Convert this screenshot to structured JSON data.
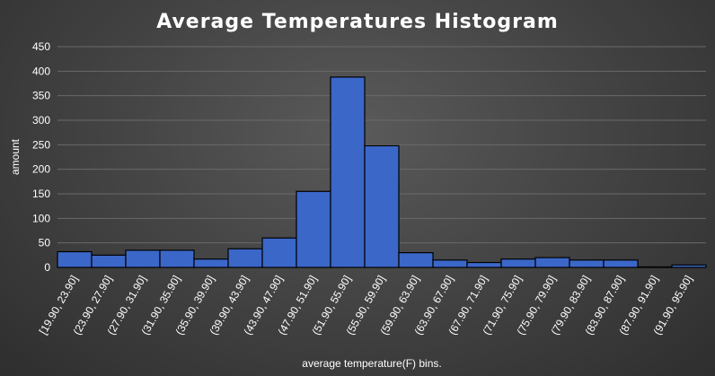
{
  "chart_data": {
    "type": "bar",
    "title": "Average Temperatures Histogram",
    "xlabel": "average temperature(F) bins.",
    "ylabel": "amount",
    "ylim": [
      0,
      450
    ],
    "yticks": [
      0,
      50,
      100,
      150,
      200,
      250,
      300,
      350,
      400,
      450
    ],
    "grid": true,
    "categories": [
      "[19.90, 23.90]",
      "(23.90, 27.90]",
      "(27.90, 31.90]",
      "(31.90, 35.90]",
      "(35.90, 39.90]",
      "(39.90, 43.90]",
      "(43.90, 47.90]",
      "(47.90, 51.90]",
      "(51.90, 55.90]",
      "(55.90, 59.90]",
      "(59.90, 63.90]",
      "(63.90, 67.90]",
      "(67.90, 71.90]",
      "(71.90, 75.90]",
      "(75.90, 79.90]",
      "(79.90, 83.90]",
      "(83.90, 87.90]",
      "(87.90, 91.90]",
      "(91.90, 95.90]"
    ],
    "values": [
      32,
      25,
      35,
      35,
      17,
      38,
      60,
      155,
      388,
      248,
      30,
      15,
      10,
      17,
      20,
      15,
      15,
      1,
      5
    ],
    "colors": {
      "bar": "#3b67c8",
      "bar_outline": "#000000",
      "grid": "#6a6a6a",
      "text": "#ffffff"
    }
  }
}
